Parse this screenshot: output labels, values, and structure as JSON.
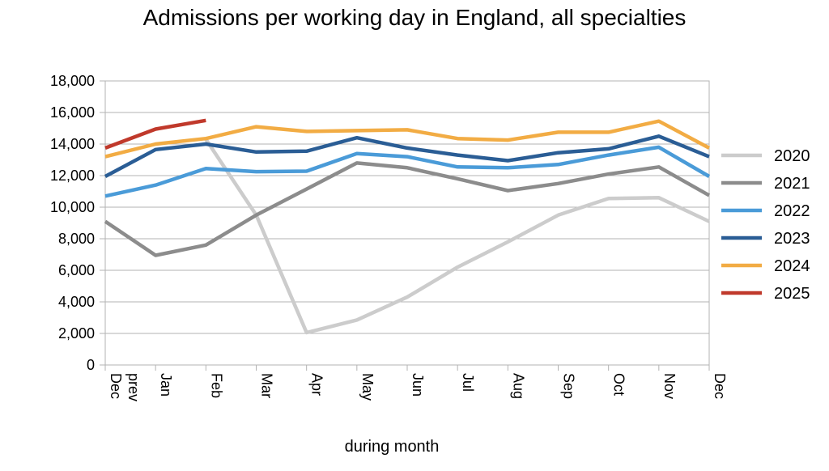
{
  "chart_data": {
    "type": "line",
    "title": "Admissions per working day in England, all specialties",
    "xlabel": "during month",
    "ylabel": "",
    "ylim": [
      0,
      18000
    ],
    "yticks": [
      "0",
      "2,000",
      "4,000",
      "6,000",
      "8,000",
      "10,000",
      "12,000",
      "14,000",
      "16,000",
      "18,000"
    ],
    "categories": [
      "Dec prev",
      "Jan",
      "Feb",
      "Mar",
      "Apr",
      "May",
      "Jun",
      "Jul",
      "Aug",
      "Sep",
      "Oct",
      "Nov",
      "Dec"
    ],
    "grid": "horizontal",
    "legend_position": "right",
    "series": [
      {
        "name": "2020",
        "color": "#cccccc",
        "values": [
          null,
          null,
          14300,
          9500,
          2050,
          2850,
          4300,
          6200,
          7800,
          9500,
          10550,
          10600,
          9100
        ]
      },
      {
        "name": "2021",
        "color": "#8c8c8c",
        "values": [
          9100,
          6950,
          7600,
          9500,
          11150,
          12800,
          12500,
          11800,
          11050,
          11500,
          12100,
          12550,
          10750
        ]
      },
      {
        "name": "2022",
        "color": "#4a9bd8",
        "values": [
          10700,
          11400,
          12450,
          12250,
          12280,
          13400,
          13200,
          12550,
          12500,
          12700,
          13300,
          13800,
          11950
        ]
      },
      {
        "name": "2023",
        "color": "#2a5d95",
        "values": [
          11950,
          13650,
          14000,
          13500,
          13550,
          14400,
          13750,
          13300,
          12950,
          13450,
          13700,
          14500,
          13200
        ]
      },
      {
        "name": "2024",
        "color": "#f2ac44",
        "values": [
          13200,
          14000,
          14350,
          15100,
          14800,
          14850,
          14900,
          14350,
          14250,
          14750,
          14750,
          15450,
          13750
        ]
      },
      {
        "name": "2025",
        "color": "#c0392b",
        "values": [
          13750,
          14950,
          15500,
          null,
          null,
          null,
          null,
          null,
          null,
          null,
          null,
          null,
          null
        ]
      }
    ]
  }
}
